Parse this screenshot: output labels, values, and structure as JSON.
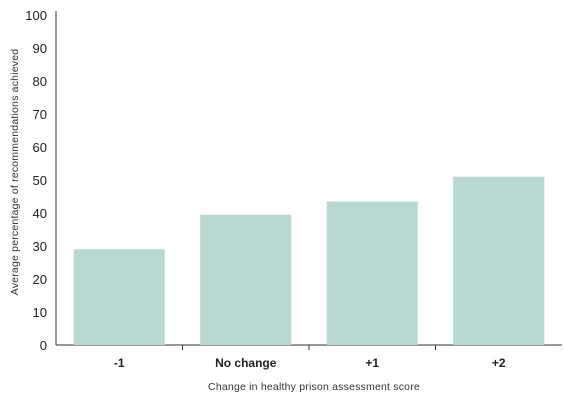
{
  "chart_data": {
    "type": "bar",
    "title": "",
    "categories": [
      "-1",
      "No change",
      "+1",
      "+2"
    ],
    "values": [
      29,
      39.5,
      43.5,
      51
    ],
    "xlabel": "Change in healthy prison assessment score",
    "ylabel": "Average percentage of recommendations achieved",
    "ylim": [
      0,
      100
    ],
    "yticks": [
      0,
      10,
      20,
      30,
      40,
      50,
      60,
      70,
      80,
      90,
      100
    ],
    "grid": false,
    "legend": "none",
    "bar_color": "#b9d8d2",
    "axis_color": "#333333"
  }
}
